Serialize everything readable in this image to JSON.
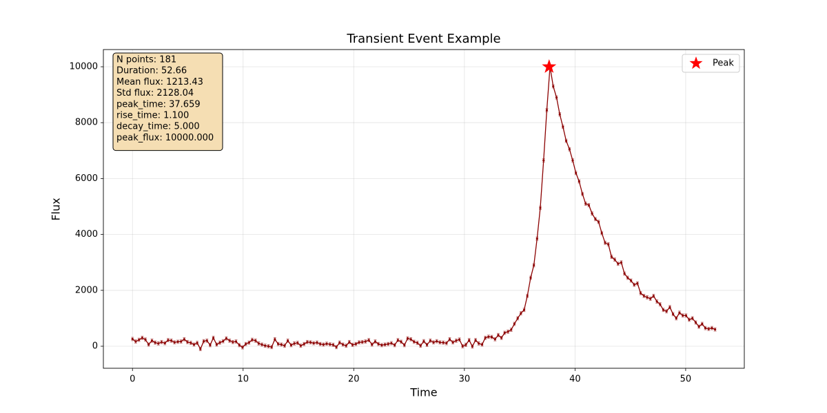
{
  "chart_data": {
    "type": "errorbar-line",
    "title": "Transient Event Example",
    "x_label": "Time",
    "y_label": "Flux",
    "x": [
      0,
      0.29,
      0.59,
      0.88,
      1.17,
      1.46,
      1.76,
      2.05,
      2.34,
      2.63,
      2.93,
      3.22,
      3.51,
      3.8,
      4.1,
      4.39,
      4.68,
      4.97,
      5.27,
      5.56,
      5.85,
      6.14,
      6.44,
      6.73,
      7.02,
      7.31,
      7.61,
      7.9,
      8.19,
      8.48,
      8.78,
      9.07,
      9.36,
      9.66,
      9.95,
      10.24,
      10.53,
      10.82,
      11.12,
      11.41,
      11.7,
      11.99,
      12.29,
      12.58,
      12.87,
      13.17,
      13.46,
      13.75,
      14.04,
      14.34,
      14.63,
      14.92,
      15.21,
      15.51,
      15.8,
      16.09,
      16.38,
      16.68,
      16.97,
      17.26,
      17.55,
      17.85,
      18.14,
      18.43,
      18.72,
      19.02,
      19.31,
      19.6,
      19.89,
      20.19,
      20.48,
      20.77,
      21.06,
      21.36,
      21.65,
      21.94,
      22.23,
      22.53,
      22.82,
      23.11,
      23.4,
      23.7,
      23.99,
      24.28,
      24.58,
      24.87,
      25.16,
      25.45,
      25.75,
      26.04,
      26.33,
      26.62,
      26.92,
      27.21,
      27.5,
      27.79,
      28.09,
      28.38,
      28.67,
      28.96,
      29.26,
      29.55,
      29.84,
      30.13,
      30.43,
      30.72,
      31.01,
      31.3,
      31.6,
      31.89,
      32.18,
      32.47,
      32.77,
      33.06,
      33.35,
      33.64,
      33.94,
      34.23,
      34.52,
      34.82,
      35.11,
      35.4,
      35.69,
      35.99,
      36.28,
      36.57,
      36.86,
      37.16,
      37.45,
      37.74,
      38.03,
      38.33,
      38.62,
      38.91,
      39.2,
      39.5,
      39.79,
      40.08,
      40.37,
      40.67,
      40.96,
      41.25,
      41.54,
      41.84,
      42.13,
      42.42,
      42.72,
      43.01,
      43.3,
      43.59,
      43.89,
      44.18,
      44.47,
      44.76,
      45.06,
      45.35,
      45.64,
      45.93,
      46.23,
      46.52,
      46.81,
      47.1,
      47.4,
      47.69,
      47.98,
      48.27,
      48.57,
      48.86,
      49.15,
      49.44,
      49.74,
      50.03,
      50.32,
      50.61,
      50.91,
      51.2,
      51.49,
      51.78,
      52.08,
      52.37,
      52.66
    ],
    "series": [
      {
        "color": "#8b0000",
        "error": 60,
        "values": [
          260,
          170,
          230,
          300,
          240,
          60,
          200,
          130,
          100,
          150,
          110,
          220,
          200,
          140,
          160,
          170,
          250,
          150,
          120,
          60,
          120,
          -100,
          180,
          200,
          40,
          300,
          60,
          130,
          180,
          280,
          200,
          150,
          170,
          40,
          -40,
          80,
          130,
          230,
          200,
          100,
          60,
          20,
          0,
          -30,
          250,
          80,
          60,
          20,
          200,
          40,
          100,
          120,
          20,
          80,
          150,
          140,
          110,
          130,
          80,
          60,
          90,
          70,
          50,
          -30,
          130,
          60,
          20,
          150,
          50,
          80,
          140,
          150,
          170,
          220,
          60,
          170,
          80,
          40,
          60,
          80,
          110,
          40,
          220,
          160,
          40,
          280,
          250,
          160,
          120,
          20,
          180,
          50,
          200,
          140,
          180,
          140,
          130,
          110,
          250,
          140,
          200,
          240,
          0,
          50,
          220,
          -10,
          220,
          100,
          60,
          300,
          340,
          330,
          250,
          400,
          300,
          480,
          520,
          590,
          800,
          1000,
          1180,
          1300,
          1800,
          2450,
          2900,
          3850,
          4950,
          6650,
          8450,
          10000,
          9300,
          8900,
          8300,
          7850,
          7350,
          7050,
          6650,
          6200,
          5900,
          5450,
          5100,
          5050,
          4750,
          4550,
          4450,
          4050,
          3700,
          3650,
          3200,
          3100,
          2950,
          3000,
          2600,
          2450,
          2350,
          2200,
          2250,
          1900,
          1800,
          1750,
          1700,
          1800,
          1600,
          1500,
          1300,
          1250,
          1400,
          1150,
          1000,
          1200,
          1100,
          1100,
          950,
          1000,
          850,
          700,
          800,
          650,
          620,
          650,
          600
        ]
      }
    ],
    "peak": {
      "name": "Peak",
      "color": "#ff0000",
      "x": 37.659,
      "y": 10000
    },
    "stats": [
      "N points: 181",
      "Duration: 52.66",
      "Mean flux: 1213.43",
      "Std flux: 2128.04",
      "peak_time: 37.659",
      "rise_time: 1.100",
      "decay_time: 5.000",
      "peak_flux: 10000.000"
    ],
    "xlim": [
      -2.63,
      55.3
    ],
    "ylim": [
      -788,
      10616
    ],
    "xticks": [
      0,
      10,
      20,
      30,
      40,
      50
    ],
    "yticks": [
      0,
      2000,
      4000,
      6000,
      8000,
      10000
    ],
    "grid": true,
    "legend_position": "upper right"
  }
}
